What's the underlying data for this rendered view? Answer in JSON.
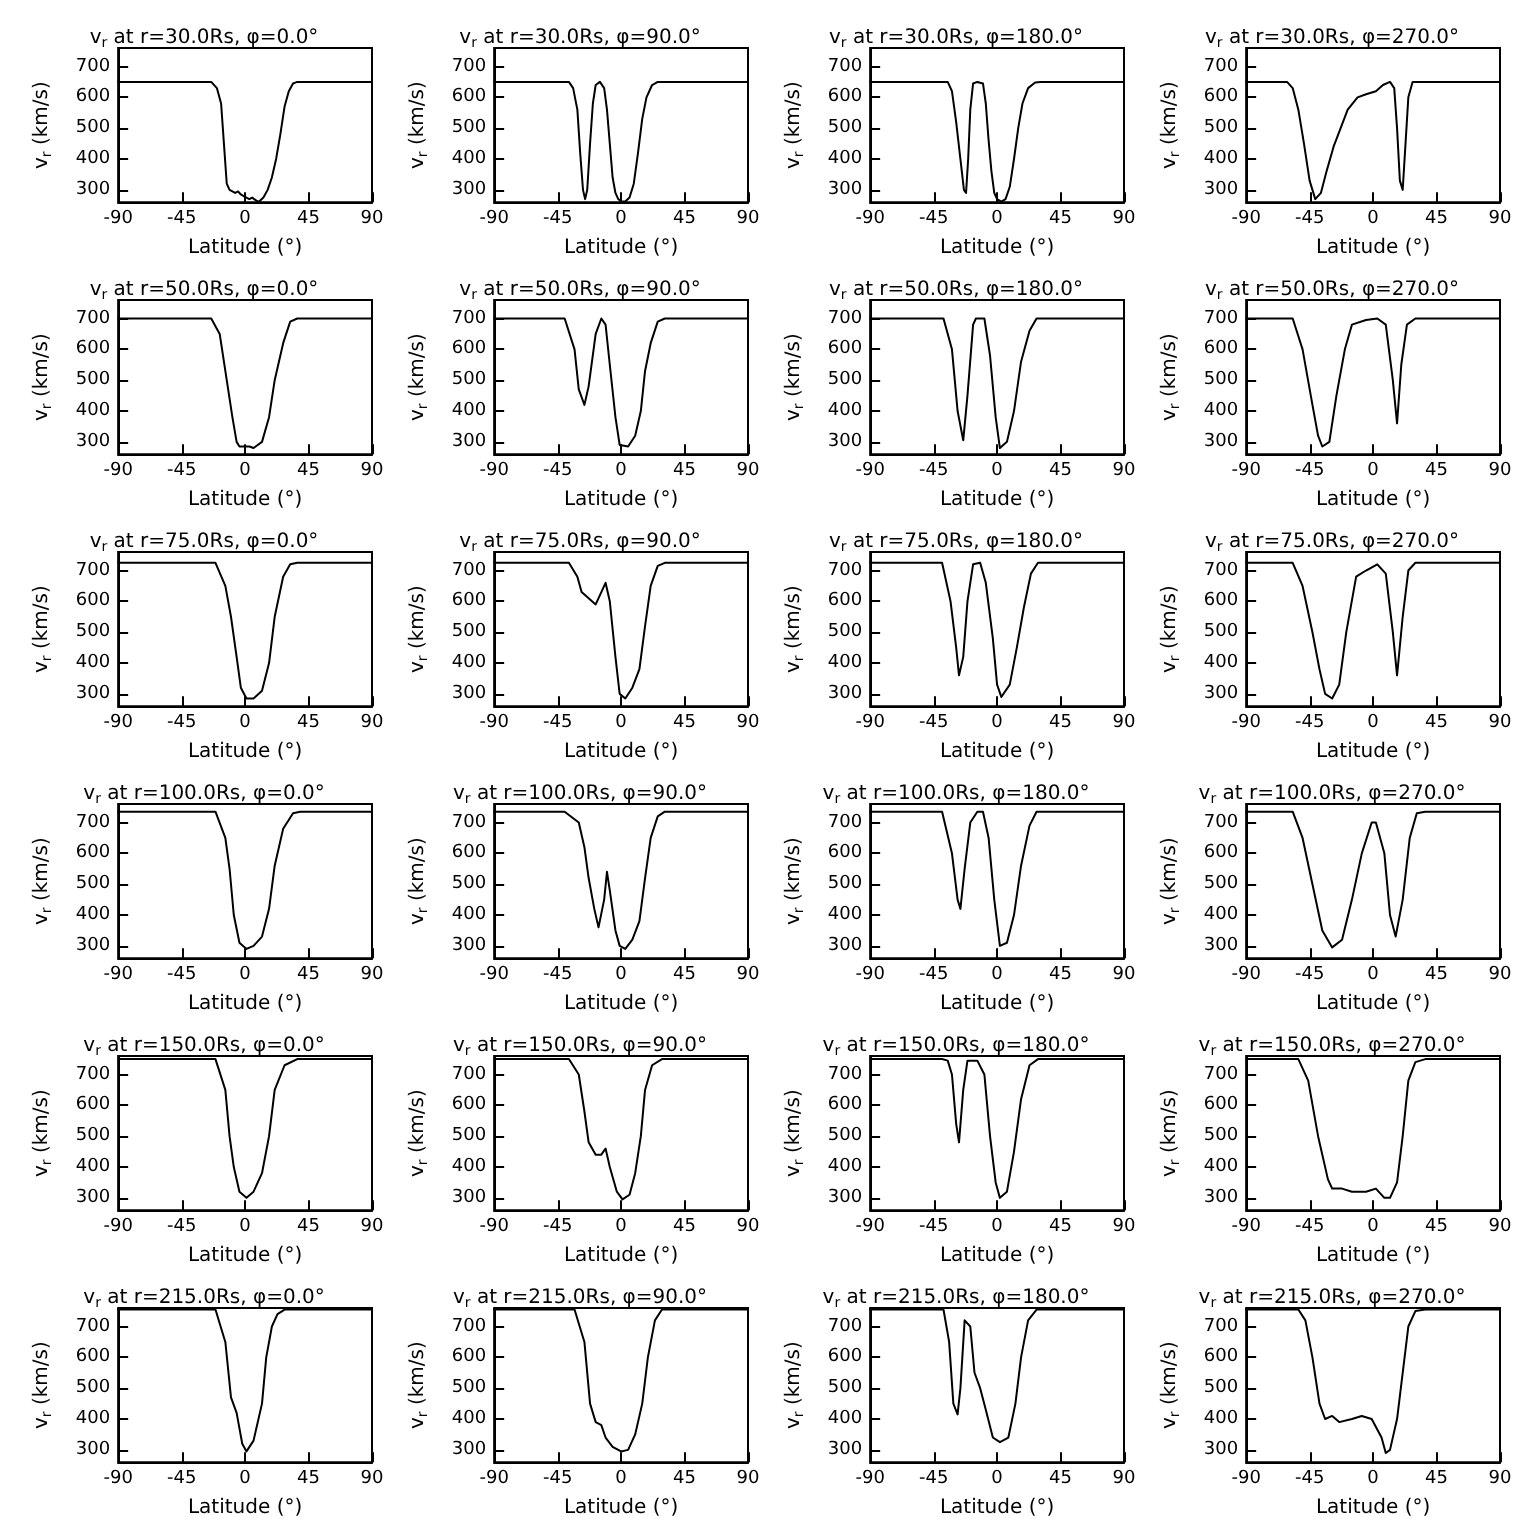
{
  "chart_data": [
    {
      "type": "line",
      "title": "v$_{r}$ at r=30.0Rs, φ=0.0°",
      "xlabel": "Latitude (°)",
      "ylabel": "v$_{r}$ (km/s)",
      "color": "#000000",
      "xlim": [
        -90,
        90
      ],
      "xticks": [
        -90,
        -45,
        0,
        45,
        90
      ],
      "ylim": [
        260,
        760
      ],
      "yticks": [
        300,
        400,
        500,
        600,
        700
      ],
      "x": [
        -90,
        -24,
        -20,
        -17,
        -15,
        -13,
        -11,
        -9,
        -7,
        -5,
        -3,
        -1,
        1,
        3,
        5,
        8,
        10,
        13,
        16,
        19,
        22,
        25,
        28,
        31,
        34,
        37,
        90
      ],
      "values": [
        650,
        650,
        630,
        580,
        450,
        320,
        300,
        295,
        290,
        295,
        285,
        280,
        275,
        270,
        275,
        265,
        262,
        275,
        300,
        340,
        400,
        480,
        570,
        620,
        645,
        650,
        650
      ]
    },
    {
      "type": "line",
      "title": "v$_{r}$ at r=30.0Rs, φ=90.0°",
      "xlabel": "Latitude (°)",
      "ylabel": "v$_{r}$ (km/s)",
      "color": "#000000",
      "xlim": [
        -90,
        90
      ],
      "xticks": [
        -90,
        -45,
        0,
        45,
        90
      ],
      "ylim": [
        260,
        760
      ],
      "yticks": [
        300,
        400,
        500,
        600,
        700
      ],
      "x": [
        -90,
        -37,
        -34,
        -31,
        -29,
        -27,
        -25.5,
        -24,
        -22,
        -20,
        -18,
        -15,
        -12,
        -10,
        -8,
        -6,
        -4,
        -2,
        0,
        3,
        6,
        9,
        12,
        15,
        18,
        22,
        26,
        90
      ],
      "values": [
        650,
        650,
        630,
        560,
        420,
        300,
        270,
        300,
        450,
        580,
        640,
        650,
        630,
        560,
        450,
        340,
        290,
        270,
        262,
        262,
        275,
        320,
        420,
        530,
        600,
        640,
        650,
        650
      ]
    },
    {
      "type": "line",
      "title": "v$_{r}$ at r=30.0Rs, φ=180.0°",
      "xlabel": "Latitude (°)",
      "ylabel": "v$_{r}$ (km/s)",
      "color": "#000000",
      "xlim": [
        -90,
        90
      ],
      "xticks": [
        -90,
        -45,
        0,
        45,
        90
      ],
      "ylim": [
        260,
        760
      ],
      "yticks": [
        300,
        400,
        500,
        600,
        700
      ],
      "x": [
        -90,
        -35,
        -32,
        -29,
        -26,
        -23.5,
        -22,
        -20.5,
        -19,
        -17,
        -14,
        -10,
        -8,
        -6,
        -4,
        -2,
        0,
        3,
        6,
        9,
        12,
        15,
        18,
        22,
        27,
        31,
        90
      ],
      "values": [
        650,
        650,
        620,
        520,
        400,
        300,
        290,
        400,
        560,
        645,
        650,
        645,
        580,
        460,
        360,
        290,
        270,
        262,
        270,
        310,
        400,
        500,
        580,
        630,
        648,
        650,
        650
      ]
    },
    {
      "type": "line",
      "title": "v$_{r}$ at r=30.0Rs, φ=270.0°",
      "xlabel": "Latitude (°)",
      "ylabel": "v$_{r}$ (km/s)",
      "color": "#000000",
      "xlim": [
        -90,
        90
      ],
      "xticks": [
        -90,
        -45,
        0,
        45,
        90
      ],
      "ylim": [
        260,
        760
      ],
      "yticks": [
        300,
        400,
        500,
        600,
        700
      ],
      "x": [
        -90,
        -61,
        -57,
        -53,
        -49,
        -45,
        -41,
        -37,
        -33,
        -28,
        -23,
        -18,
        -11,
        -5,
        2,
        7,
        12,
        15,
        17,
        19,
        21,
        23,
        25,
        28,
        90
      ],
      "values": [
        650,
        650,
        630,
        560,
        450,
        330,
        270,
        290,
        360,
        440,
        500,
        560,
        600,
        610,
        620,
        640,
        650,
        630,
        500,
        330,
        300,
        450,
        600,
        650,
        650
      ]
    },
    {
      "type": "line",
      "title": "v$_{r}$ at r=50.0Rs, φ=0.0°",
      "xlabel": "Latitude (°)",
      "ylabel": "v$_{r}$ (km/s)",
      "color": "#000000",
      "xlim": [
        -90,
        90
      ],
      "xticks": [
        -90,
        -45,
        0,
        45,
        90
      ],
      "ylim": [
        260,
        760
      ],
      "yticks": [
        300,
        400,
        500,
        600,
        700
      ],
      "x": [
        -90,
        -24,
        -18,
        -13,
        -9,
        -6,
        -4,
        0,
        3,
        6,
        12,
        17,
        21,
        27,
        32,
        37,
        90
      ],
      "values": [
        700,
        700,
        650,
        500,
        380,
        300,
        285,
        285,
        285,
        280,
        300,
        380,
        500,
        620,
        690,
        700,
        700
      ]
    },
    {
      "type": "line",
      "title": "v$_{r}$ at r=50.0Rs, φ=90.0°",
      "xlabel": "Latitude (°)",
      "ylabel": "v$_{r}$ (km/s)",
      "color": "#000000",
      "xlim": [
        -90,
        90
      ],
      "xticks": [
        -90,
        -45,
        0,
        45,
        90
      ],
      "ylim": [
        260,
        760
      ],
      "yticks": [
        300,
        400,
        500,
        600,
        700
      ],
      "x": [
        -90,
        -40,
        -33,
        -30,
        -26,
        -23,
        -18,
        -14,
        -11,
        -8,
        -4,
        -1,
        5,
        10,
        14,
        17,
        21,
        26,
        31,
        90
      ],
      "values": [
        700,
        700,
        600,
        470,
        420,
        480,
        650,
        700,
        680,
        550,
        380,
        290,
        285,
        320,
        400,
        530,
        620,
        690,
        700,
        700
      ]
    },
    {
      "type": "line",
      "title": "v$_{r}$ at r=50.0Rs, φ=180.0°",
      "xlabel": "Latitude (°)",
      "ylabel": "v$_{r}$ (km/s)",
      "color": "#000000",
      "xlim": [
        -90,
        90
      ],
      "xticks": [
        -90,
        -45,
        0,
        45,
        90
      ],
      "ylim": [
        260,
        760
      ],
      "yticks": [
        300,
        400,
        500,
        600,
        700
      ],
      "x": [
        -90,
        -38,
        -32,
        -28,
        -24,
        -21,
        -17,
        -15,
        -9,
        -5,
        -1,
        2,
        7,
        12,
        17,
        23,
        28,
        90
      ],
      "values": [
        700,
        700,
        600,
        400,
        305,
        450,
        680,
        700,
        700,
        580,
        380,
        280,
        300,
        400,
        560,
        660,
        700,
        700
      ]
    },
    {
      "type": "line",
      "title": "v$_{r}$ at r=50.0Rs, φ=270.0°",
      "xlabel": "Latitude (°)",
      "ylabel": "v$_{r}$ (km/s)",
      "color": "#000000",
      "xlim": [
        -90,
        90
      ],
      "xticks": [
        -90,
        -45,
        0,
        45,
        90
      ],
      "ylim": [
        260,
        760
      ],
      "yticks": [
        300,
        400,
        500,
        600,
        700
      ],
      "x": [
        -90,
        -57,
        -50,
        -43,
        -39,
        -36,
        -31,
        -26,
        -20,
        -15,
        -5,
        3,
        9,
        14,
        17,
        20,
        24,
        30,
        90
      ],
      "values": [
        700,
        700,
        600,
        420,
        320,
        285,
        300,
        450,
        600,
        680,
        695,
        700,
        680,
        500,
        360,
        550,
        680,
        700,
        700
      ]
    },
    {
      "type": "line",
      "title": "v$_{r}$ at r=75.0Rs, φ=0.0°",
      "xlabel": "Latitude (°)",
      "ylabel": "v$_{r}$ (km/s)",
      "color": "#000000",
      "xlim": [
        -90,
        90
      ],
      "xticks": [
        -90,
        -45,
        0,
        45,
        90
      ],
      "ylim": [
        260,
        760
      ],
      "yticks": [
        300,
        400,
        500,
        600,
        700
      ],
      "x": [
        -90,
        -21,
        -14,
        -10,
        -6,
        -3,
        1,
        6,
        12,
        17,
        21,
        27,
        32,
        37,
        90
      ],
      "values": [
        725,
        725,
        650,
        550,
        420,
        320,
        285,
        285,
        310,
        400,
        550,
        680,
        720,
        725,
        725
      ]
    },
    {
      "type": "line",
      "title": "v$_{r}$ at r=75.0Rs, φ=90.0°",
      "xlabel": "Latitude (°)",
      "ylabel": "v$_{r}$ (km/s)",
      "color": "#000000",
      "xlim": [
        -90,
        90
      ],
      "xticks": [
        -90,
        -45,
        0,
        45,
        90
      ],
      "ylim": [
        260,
        760
      ],
      "yticks": [
        300,
        400,
        500,
        600,
        700
      ],
      "x": [
        -90,
        -37,
        -31,
        -28,
        -23,
        -18,
        -14,
        -11,
        -8,
        -4,
        -1,
        3,
        8,
        13,
        17,
        21,
        26,
        31,
        90
      ],
      "values": [
        725,
        725,
        680,
        630,
        610,
        590,
        630,
        660,
        600,
        420,
        300,
        285,
        320,
        380,
        520,
        650,
        715,
        725,
        725
      ]
    },
    {
      "type": "line",
      "title": "v$_{r}$ at r=75.0Rs, φ=180.0°",
      "xlabel": "Latitude (°)",
      "ylabel": "v$_{r}$ (km/s)",
      "color": "#000000",
      "xlim": [
        -90,
        90
      ],
      "xticks": [
        -90,
        -45,
        0,
        45,
        90
      ],
      "ylim": [
        260,
        760
      ],
      "yticks": [
        300,
        400,
        500,
        600,
        700
      ],
      "x": [
        -90,
        -39,
        -33,
        -29,
        -27,
        -24,
        -21,
        -17,
        -12,
        -8,
        -3,
        0,
        3,
        9,
        14,
        19,
        24,
        29,
        90
      ],
      "values": [
        725,
        725,
        600,
        450,
        360,
        420,
        600,
        720,
        725,
        660,
        480,
        330,
        290,
        330,
        450,
        580,
        690,
        725,
        725
      ]
    },
    {
      "type": "line",
      "title": "v$_{r}$ at r=75.0Rs, φ=270.0°",
      "xlabel": "Latitude (°)",
      "ylabel": "v$_{r}$ (km/s)",
      "color": "#000000",
      "xlim": [
        -90,
        90
      ],
      "xticks": [
        -90,
        -45,
        0,
        45,
        90
      ],
      "ylim": [
        260,
        760
      ],
      "yticks": [
        300,
        400,
        500,
        600,
        700
      ],
      "x": [
        -90,
        -57,
        -50,
        -43,
        -38,
        -34,
        -29,
        -24,
        -19,
        -12,
        -5,
        3,
        9,
        14,
        17,
        21,
        25,
        30,
        90
      ],
      "values": [
        725,
        725,
        650,
        500,
        380,
        300,
        285,
        330,
        500,
        680,
        700,
        720,
        690,
        500,
        360,
        550,
        700,
        725,
        725
      ]
    },
    {
      "type": "line",
      "title": "v$_{r}$ at r=100.0Rs, φ=0.0°",
      "xlabel": "Latitude (°)",
      "ylabel": "v$_{r}$ (km/s)",
      "color": "#000000",
      "xlim": [
        -90,
        90
      ],
      "xticks": [
        -90,
        -45,
        0,
        45,
        90
      ],
      "ylim": [
        260,
        760
      ],
      "yticks": [
        300,
        400,
        500,
        600,
        700
      ],
      "x": [
        -90,
        -21,
        -14,
        -11,
        -8,
        -4,
        1,
        6,
        12,
        17,
        21,
        27,
        34,
        39,
        90
      ],
      "values": [
        735,
        735,
        650,
        550,
        400,
        310,
        290,
        300,
        330,
        420,
        560,
        680,
        730,
        735,
        735
      ]
    },
    {
      "type": "line",
      "title": "v$_{r}$ at r=100.0Rs, φ=90.0°",
      "xlabel": "Latitude (°)",
      "ylabel": "v$_{r}$ (km/s)",
      "color": "#000000",
      "xlim": [
        -90,
        90
      ],
      "xticks": [
        -90,
        -45,
        0,
        45,
        90
      ],
      "ylim": [
        260,
        760
      ],
      "yticks": [
        300,
        400,
        500,
        600,
        700
      ],
      "x": [
        -90,
        -40,
        -30,
        -26,
        -23,
        -19,
        -16,
        -12,
        -10,
        -8,
        -4,
        -1,
        3,
        8,
        13,
        17,
        21,
        26,
        31,
        90
      ],
      "values": [
        735,
        735,
        700,
        620,
        520,
        420,
        360,
        450,
        540,
        480,
        350,
        300,
        290,
        320,
        380,
        520,
        650,
        720,
        735,
        735
      ]
    },
    {
      "type": "line",
      "title": "v$_{r}$ at r=100.0Rs, φ=180.0°",
      "xlabel": "Latitude (°)",
      "ylabel": "v$_{r}$ (km/s)",
      "color": "#000000",
      "xlim": [
        -90,
        90
      ],
      "xticks": [
        -90,
        -45,
        0,
        45,
        90
      ],
      "ylim": [
        260,
        760
      ],
      "yticks": [
        300,
        400,
        500,
        600,
        700
      ],
      "x": [
        -90,
        -39,
        -32,
        -28,
        -26,
        -23,
        -19,
        -14,
        -10,
        -6,
        -2,
        2,
        7,
        12,
        17,
        23,
        28,
        90
      ],
      "values": [
        735,
        735,
        600,
        450,
        420,
        550,
        700,
        735,
        735,
        650,
        450,
        300,
        310,
        400,
        560,
        690,
        735,
        735
      ]
    },
    {
      "type": "line",
      "title": "v$_{r}$ at r=100.0Rs, φ=270.0°",
      "xlabel": "Latitude (°)",
      "ylabel": "v$_{r}$ (km/s)",
      "color": "#000000",
      "xlim": [
        -90,
        90
      ],
      "xticks": [
        -90,
        -45,
        0,
        45,
        90
      ],
      "ylim": [
        260,
        760
      ],
      "yticks": [
        300,
        400,
        500,
        600,
        700
      ],
      "x": [
        -90,
        -57,
        -50,
        -43,
        -36,
        -29,
        -22,
        -15,
        -8,
        -1,
        2,
        8,
        12,
        16,
        21,
        26,
        31,
        37,
        90
      ],
      "values": [
        735,
        735,
        650,
        500,
        350,
        295,
        320,
        450,
        600,
        700,
        700,
        600,
        400,
        330,
        450,
        650,
        730,
        735,
        735
      ]
    },
    {
      "type": "line",
      "title": "v$_{r}$ at r=150.0Rs, φ=0.0°",
      "xlabel": "Latitude (°)",
      "ylabel": "v$_{r}$ (km/s)",
      "color": "#000000",
      "xlim": [
        -90,
        90
      ],
      "xticks": [
        -90,
        -45,
        0,
        45,
        90
      ],
      "ylim": [
        260,
        760
      ],
      "yticks": [
        300,
        400,
        500,
        600,
        700
      ],
      "x": [
        -90,
        -21,
        -14,
        -11,
        -8,
        -4,
        1,
        6,
        12,
        17,
        21,
        28,
        37,
        90
      ],
      "values": [
        750,
        750,
        650,
        500,
        400,
        320,
        300,
        320,
        380,
        500,
        650,
        730,
        750,
        750
      ]
    },
    {
      "type": "line",
      "title": "v$_{r}$ at r=150.0Rs, φ=90.0°",
      "xlabel": "Latitude (°)",
      "ylabel": "v$_{r}$ (km/s)",
      "color": "#000000",
      "xlim": [
        -90,
        90
      ],
      "xticks": [
        -90,
        -45,
        0,
        45,
        90
      ],
      "ylim": [
        260,
        760
      ],
      "yticks": [
        300,
        400,
        500,
        600,
        700
      ],
      "x": [
        -90,
        -37,
        -30,
        -26,
        -23,
        -18,
        -14,
        -11,
        -8,
        -3,
        1,
        6,
        10,
        14,
        17,
        22,
        29,
        90
      ],
      "values": [
        750,
        750,
        700,
        580,
        480,
        440,
        440,
        460,
        400,
        320,
        295,
        310,
        380,
        500,
        650,
        730,
        750,
        750
      ]
    },
    {
      "type": "line",
      "title": "v$_{r}$ at r=150.0Rs, φ=180.0°",
      "xlabel": "Latitude (°)",
      "ylabel": "v$_{r}$ (km/s)",
      "color": "#000000",
      "xlim": [
        -90,
        90
      ],
      "xticks": [
        -90,
        -45,
        0,
        45,
        90
      ],
      "ylim": [
        260,
        760
      ],
      "yticks": [
        300,
        400,
        500,
        600,
        700
      ],
      "x": [
        -90,
        -39,
        -35,
        -32,
        -29,
        -27,
        -24,
        -21,
        -14,
        -9,
        -5,
        -1,
        2,
        7,
        12,
        17,
        23,
        29,
        90
      ],
      "values": [
        750,
        750,
        745,
        700,
        540,
        480,
        650,
        745,
        745,
        700,
        500,
        350,
        300,
        320,
        450,
        620,
        730,
        750,
        750
      ]
    },
    {
      "type": "line",
      "title": "v$_{r}$ at r=150.0Rs, φ=270.0°",
      "xlabel": "Latitude (°)",
      "ylabel": "v$_{r}$ (km/s)",
      "color": "#000000",
      "xlim": [
        -90,
        90
      ],
      "xticks": [
        -90,
        -45,
        0,
        45,
        90
      ],
      "ylim": [
        260,
        760
      ],
      "yticks": [
        300,
        400,
        500,
        600,
        700
      ],
      "x": [
        -90,
        -53,
        -46,
        -39,
        -32,
        -29,
        -22,
        -15,
        -5,
        2,
        8,
        12,
        17,
        21,
        25,
        30,
        37,
        90
      ],
      "values": [
        750,
        750,
        680,
        500,
        360,
        330,
        330,
        320,
        320,
        330,
        300,
        300,
        350,
        500,
        680,
        740,
        750,
        750
      ]
    },
    {
      "type": "line",
      "title": "v$_{r}$ at r=215.0Rs, φ=0.0°",
      "xlabel": "Latitude (°)",
      "ylabel": "v$_{r}$ (km/s)",
      "color": "#000000",
      "xlim": [
        -90,
        90
      ],
      "xticks": [
        -90,
        -45,
        0,
        45,
        90
      ],
      "ylim": [
        260,
        760
      ],
      "yticks": [
        300,
        400,
        500,
        600,
        700
      ],
      "x": [
        -90,
        -21,
        -14,
        -10,
        -6,
        -2,
        1,
        6,
        12,
        15,
        19,
        23,
        28,
        90
      ],
      "values": [
        755,
        755,
        650,
        470,
        420,
        320,
        295,
        330,
        450,
        600,
        700,
        740,
        755,
        755
      ]
    },
    {
      "type": "line",
      "title": "v$_{r}$ at r=215.0Rs, φ=90.0°",
      "xlabel": "Latitude (°)",
      "ylabel": "v$_{r}$ (km/s)",
      "color": "#000000",
      "xlim": [
        -90,
        90
      ],
      "xticks": [
        -90,
        -45,
        0,
        45,
        90
      ],
      "ylim": [
        260,
        760
      ],
      "yticks": [
        300,
        400,
        500,
        600,
        700
      ],
      "x": [
        -90,
        -33,
        -26,
        -22,
        -18,
        -14,
        -11,
        -6,
        0,
        5,
        10,
        15,
        19,
        24,
        29,
        90
      ],
      "values": [
        755,
        755,
        650,
        450,
        390,
        380,
        340,
        310,
        295,
        300,
        350,
        450,
        600,
        720,
        755,
        755
      ]
    },
    {
      "type": "line",
      "title": "v$_{r}$ at r=215.0Rs, φ=180.0°",
      "xlabel": "Latitude (°)",
      "ylabel": "v$_{r}$ (km/s)",
      "color": "#000000",
      "xlim": [
        -90,
        90
      ],
      "xticks": [
        -90,
        -45,
        0,
        45,
        90
      ],
      "ylim": [
        260,
        760
      ],
      "yticks": [
        300,
        400,
        500,
        600,
        700
      ],
      "x": [
        -90,
        -38,
        -34,
        -31,
        -28,
        -26,
        -23,
        -19,
        -16,
        -12,
        -8,
        -3,
        2,
        8,
        13,
        17,
        22,
        28,
        90
      ],
      "values": [
        755,
        755,
        650,
        450,
        415,
        500,
        720,
        700,
        550,
        500,
        430,
        340,
        325,
        340,
        450,
        600,
        720,
        755,
        755
      ]
    },
    {
      "type": "line",
      "title": "v$_{r}$ at r=215.0Rs, φ=270.0°",
      "xlabel": "Latitude (°)",
      "ylabel": "v$_{r}$ (km/s)",
      "color": "#000000",
      "xlim": [
        -90,
        90
      ],
      "xticks": [
        -90,
        -45,
        0,
        45,
        90
      ],
      "ylim": [
        260,
        760
      ],
      "yticks": [
        300,
        400,
        500,
        600,
        700
      ],
      "x": [
        -90,
        -53,
        -48,
        -43,
        -38,
        -34,
        -29,
        -24,
        -15,
        -8,
        -1,
        6,
        9,
        12,
        17,
        21,
        25,
        30,
        37,
        90
      ],
      "values": [
        755,
        755,
        720,
        600,
        450,
        400,
        410,
        390,
        400,
        410,
        400,
        340,
        290,
        300,
        400,
        550,
        700,
        750,
        755,
        755
      ]
    }
  ]
}
